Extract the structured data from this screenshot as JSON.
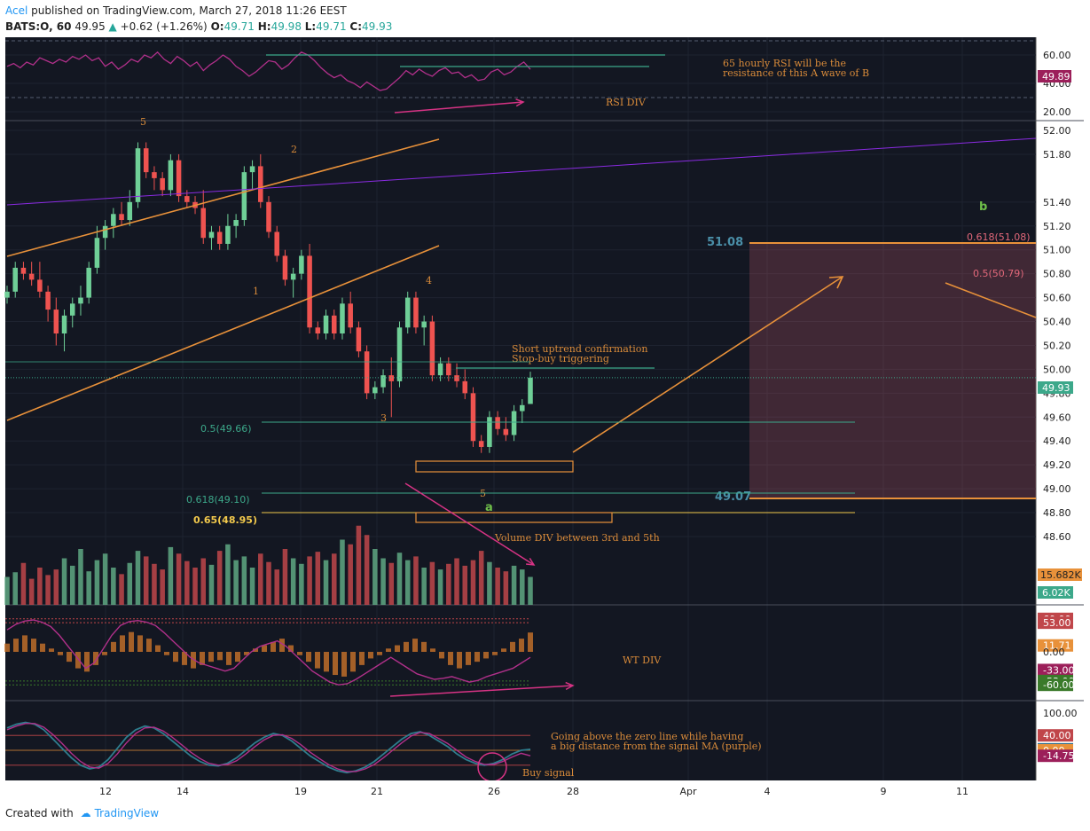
{
  "header": {
    "author": "Acel",
    "published": "published on TradingView.com, March 27, 2018 11:26 EEST",
    "symbol": "BATS:O, 60",
    "last": "49.95",
    "change": "+0.62 (+1.26%)",
    "o_label": "O:",
    "o": "49.71",
    "h_label": "H:",
    "h": "49.98",
    "l_label": "L:",
    "l": "49.71",
    "c_label": "C:",
    "c": "49.93"
  },
  "footer": {
    "created": "Created with",
    "brand": "TradingView"
  },
  "colors": {
    "bg": "#131722",
    "up": "#6fcf97",
    "down": "#ef5350",
    "orange": "#e8913a",
    "purple": "#b0308a",
    "teal": "#3ca88a",
    "price_badge": "#3ca88a",
    "rsi_badge": "#9c1f5a"
  },
  "chart_data": [
    {
      "type": "line",
      "panel": "rsi",
      "ylim": [
        20,
        70
      ],
      "yticks": [
        "60.00",
        "40.00",
        "20.00"
      ],
      "badge": "49.89",
      "series": [
        {
          "name": "",
          "values": [
            52,
            54,
            51,
            55,
            53,
            58,
            56,
            54,
            57,
            55,
            59,
            57,
            60,
            56,
            58,
            52,
            55,
            50,
            53,
            57,
            55,
            60,
            58,
            62,
            57,
            54,
            59,
            56,
            52,
            55,
            49,
            53,
            56,
            60,
            57,
            52,
            49,
            45,
            48,
            52,
            56,
            55,
            50,
            53,
            58,
            62,
            60,
            56,
            51,
            47,
            44,
            46,
            42,
            40,
            37,
            41,
            38,
            35,
            36,
            40,
            44,
            49,
            46,
            50,
            47,
            45,
            49,
            51,
            47,
            48,
            44,
            46,
            42,
            43,
            48,
            50,
            46,
            48,
            52,
            55,
            49.89
          ]
        }
      ],
      "annotations": [
        "65 hourly RSI will be the",
        "resistance of this A wave of B",
        "RSI DIV"
      ]
    },
    {
      "type": "candlestick",
      "panel": "price",
      "ylim": [
        48.6,
        52.0
      ],
      "yticks": [
        "52.00",
        "51.80",
        "51.40",
        "51.20",
        "51.00",
        "50.80",
        "50.60",
        "50.40",
        "50.20",
        "50.00",
        "49.80",
        "49.60",
        "49.40",
        "49.20",
        "49.00",
        "48.80",
        "48.60"
      ],
      "last_price": "49.93",
      "candles": [
        [
          50.6,
          50.7,
          50.55,
          50.65
        ],
        [
          50.65,
          50.9,
          50.6,
          50.85
        ],
        [
          50.85,
          50.9,
          50.75,
          50.8
        ],
        [
          50.8,
          50.9,
          50.7,
          50.75
        ],
        [
          50.75,
          50.9,
          50.6,
          50.65
        ],
        [
          50.65,
          50.7,
          50.4,
          50.5
        ],
        [
          50.5,
          50.6,
          50.2,
          50.3
        ],
        [
          50.3,
          50.5,
          50.15,
          50.45
        ],
        [
          50.45,
          50.6,
          50.35,
          50.55
        ],
        [
          50.55,
          50.7,
          50.45,
          50.6
        ],
        [
          50.6,
          50.9,
          50.55,
          50.85
        ],
        [
          50.85,
          51.2,
          50.8,
          51.1
        ],
        [
          51.1,
          51.25,
          51.0,
          51.2
        ],
        [
          51.2,
          51.35,
          51.1,
          51.3
        ],
        [
          51.3,
          51.4,
          51.2,
          51.25
        ],
        [
          51.25,
          51.5,
          51.2,
          51.4
        ],
        [
          51.4,
          51.9,
          51.35,
          51.85
        ],
        [
          51.85,
          51.9,
          51.6,
          51.65
        ],
        [
          51.65,
          51.7,
          51.5,
          51.6
        ],
        [
          51.6,
          51.65,
          51.45,
          51.5
        ],
        [
          51.5,
          51.8,
          51.45,
          51.75
        ],
        [
          51.75,
          51.8,
          51.4,
          51.45
        ],
        [
          51.45,
          51.5,
          51.35,
          51.4
        ],
        [
          51.4,
          51.45,
          51.3,
          51.35
        ],
        [
          51.35,
          51.5,
          51.05,
          51.1
        ],
        [
          51.1,
          51.2,
          51.0,
          51.15
        ],
        [
          51.15,
          51.2,
          51.0,
          51.05
        ],
        [
          51.05,
          51.3,
          51.0,
          51.2
        ],
        [
          51.2,
          51.3,
          51.1,
          51.25
        ],
        [
          51.25,
          51.7,
          51.2,
          51.65
        ],
        [
          51.65,
          51.75,
          51.5,
          51.7
        ],
        [
          51.7,
          51.8,
          51.35,
          51.4
        ],
        [
          51.4,
          51.45,
          51.1,
          51.15
        ],
        [
          51.15,
          51.2,
          50.9,
          50.95
        ],
        [
          50.95,
          51.0,
          50.7,
          50.75
        ],
        [
          50.75,
          50.85,
          50.6,
          50.8
        ],
        [
          50.8,
          51.0,
          50.75,
          50.95
        ],
        [
          50.95,
          51.05,
          50.3,
          50.35
        ],
        [
          50.35,
          50.4,
          50.25,
          50.3
        ],
        [
          50.3,
          50.5,
          50.25,
          50.45
        ],
        [
          50.45,
          50.5,
          50.25,
          50.3
        ],
        [
          50.3,
          50.6,
          50.25,
          50.55
        ],
        [
          50.55,
          50.65,
          50.3,
          50.35
        ],
        [
          50.35,
          50.4,
          50.1,
          50.15
        ],
        [
          50.15,
          50.2,
          49.75,
          49.8
        ],
        [
          49.8,
          49.9,
          49.75,
          49.85
        ],
        [
          49.85,
          50.0,
          49.8,
          49.95
        ],
        [
          49.95,
          50.1,
          49.6,
          49.9
        ],
        [
          49.9,
          50.4,
          49.85,
          50.35
        ],
        [
          50.35,
          50.65,
          50.3,
          50.6
        ],
        [
          50.6,
          50.65,
          50.3,
          50.35
        ],
        [
          50.35,
          50.45,
          50.2,
          50.4
        ],
        [
          50.4,
          50.45,
          49.9,
          49.95
        ],
        [
          49.95,
          50.1,
          49.9,
          50.05
        ],
        [
          50.05,
          50.1,
          49.9,
          49.95
        ],
        [
          49.95,
          50.05,
          49.85,
          49.9
        ],
        [
          49.9,
          50.0,
          49.75,
          49.8
        ],
        [
          49.8,
          49.85,
          49.35,
          49.4
        ],
        [
          49.4,
          49.45,
          49.3,
          49.35
        ],
        [
          49.35,
          49.65,
          49.3,
          49.6
        ],
        [
          49.6,
          49.65,
          49.45,
          49.5
        ],
        [
          49.5,
          49.6,
          49.4,
          49.45
        ],
        [
          49.45,
          49.7,
          49.4,
          49.65
        ],
        [
          49.65,
          49.75,
          49.55,
          49.7
        ],
        [
          49.71,
          49.98,
          49.71,
          49.93
        ]
      ],
      "levels": [
        {
          "label": "0.5(49.66)",
          "price": 49.66
        },
        {
          "label": "0.618(49.10)",
          "price": 49.1
        },
        {
          "label": "0.65(48.95)",
          "price": 48.95
        },
        {
          "label": "51.08",
          "price": 51.08
        },
        {
          "label": "49.07",
          "price": 49.07
        },
        {
          "label": "0.618(51.08)",
          "price": 51.08
        },
        {
          "label": "0.5(50.79)",
          "price": 50.79
        }
      ],
      "wave_labels": [
        "5",
        "2",
        "1",
        "4",
        "3",
        "5",
        "a",
        "b"
      ],
      "annotations": [
        "Short uptrend confirmation",
        "Stop-buy triggering",
        "Volume DIV between 3rd and 5th"
      ]
    },
    {
      "type": "bar",
      "panel": "volume",
      "badges": [
        "15.682K",
        "6.02K"
      ],
      "values": [
        30,
        35,
        45,
        28,
        40,
        32,
        38,
        50,
        42,
        60,
        36,
        48,
        55,
        40,
        33,
        45,
        58,
        52,
        44,
        38,
        62,
        55,
        47,
        40,
        50,
        43,
        58,
        65,
        48,
        52,
        40,
        55,
        46,
        38,
        60,
        50,
        44,
        52,
        57,
        48,
        55,
        70,
        65,
        85,
        75,
        60,
        50,
        45,
        56,
        48,
        52,
        40,
        46,
        38,
        44,
        50,
        42,
        48,
        58,
        46,
        40,
        36,
        42,
        38,
        30
      ]
    },
    {
      "type": "line",
      "panel": "wt",
      "yticks": [
        "60.00",
        "53.00",
        "11.71",
        "0.00",
        "-33.00",
        "-53.00",
        "-60.00"
      ],
      "annotations": [
        "WT DIV"
      ],
      "series": [
        {
          "name": "",
          "values": [
            40,
            50,
            56,
            58,
            54,
            46,
            30,
            10,
            -10,
            -30,
            -20,
            5,
            30,
            48,
            55,
            57,
            54,
            48,
            35,
            20,
            5,
            -10,
            -20,
            -25,
            -30,
            -35,
            -30,
            -15,
            0,
            10,
            15,
            20,
            10,
            -5,
            -20,
            -35,
            -45,
            -55,
            -60,
            -58,
            -50,
            -40,
            -30,
            -20,
            -10,
            -20,
            -30,
            -40,
            -45,
            -50,
            -48,
            -45,
            -50,
            -55,
            -52,
            -45,
            -40,
            -35,
            -30,
            -20,
            -10
          ]
        },
        {
          "name": "",
          "values": [
            5,
            8,
            10,
            8,
            5,
            2,
            -2,
            -6,
            -10,
            -12,
            -8,
            -2,
            6,
            10,
            12,
            10,
            8,
            4,
            -2,
            -6,
            -8,
            -10,
            -8,
            -6,
            -5,
            -8,
            -6,
            -2,
            2,
            4,
            6,
            8,
            4,
            -2,
            -6,
            -10,
            -12,
            -14,
            -15,
            -12,
            -8,
            -4,
            -2,
            2,
            4,
            6,
            8,
            6,
            2,
            -4,
            -8,
            -10,
            -8,
            -6,
            -4,
            -2,
            2,
            6,
            8,
            11.71
          ]
        }
      ]
    },
    {
      "type": "line",
      "panel": "oscillator",
      "yticks": [
        "100.00",
        "40.00",
        "2.67",
        "0.00",
        "-14.75"
      ],
      "annotations": [
        "Going above the zero line while having",
        "a big distance from the signal MA (purple)",
        "Buy signal"
      ],
      "series": [
        {
          "name": "",
          "values": [
            60,
            70,
            75,
            70,
            55,
            30,
            5,
            -20,
            -40,
            -50,
            -45,
            -25,
            5,
            35,
            55,
            65,
            60,
            45,
            25,
            5,
            -15,
            -30,
            -40,
            -42,
            -35,
            -20,
            0,
            20,
            35,
            45,
            40,
            25,
            5,
            -15,
            -30,
            -45,
            -55,
            -60,
            -55,
            -45,
            -30,
            -10,
            10,
            30,
            45,
            50,
            40,
            25,
            10,
            -10,
            -25,
            -35,
            -40,
            -35,
            -25,
            -10,
            0,
            2.67
          ]
        },
        {
          "name": "",
          "values": [
            55,
            65,
            72,
            72,
            62,
            42,
            18,
            -8,
            -30,
            -45,
            -48,
            -35,
            -10,
            20,
            45,
            60,
            62,
            52,
            35,
            15,
            -5,
            -22,
            -35,
            -40,
            -38,
            -28,
            -10,
            10,
            28,
            40,
            42,
            32,
            15,
            -5,
            -22,
            -38,
            -50,
            -57,
            -57,
            -50,
            -38,
            -20,
            0,
            20,
            38,
            48,
            45,
            32,
            18,
            0,
            -18,
            -30,
            -38,
            -38,
            -30,
            -18,
            -8,
            -14.75
          ]
        }
      ]
    }
  ],
  "x_axis": {
    "ticks": [
      "12",
      "14",
      "19",
      "21",
      "26",
      "28",
      "Apr",
      "4",
      "9",
      "11"
    ]
  }
}
